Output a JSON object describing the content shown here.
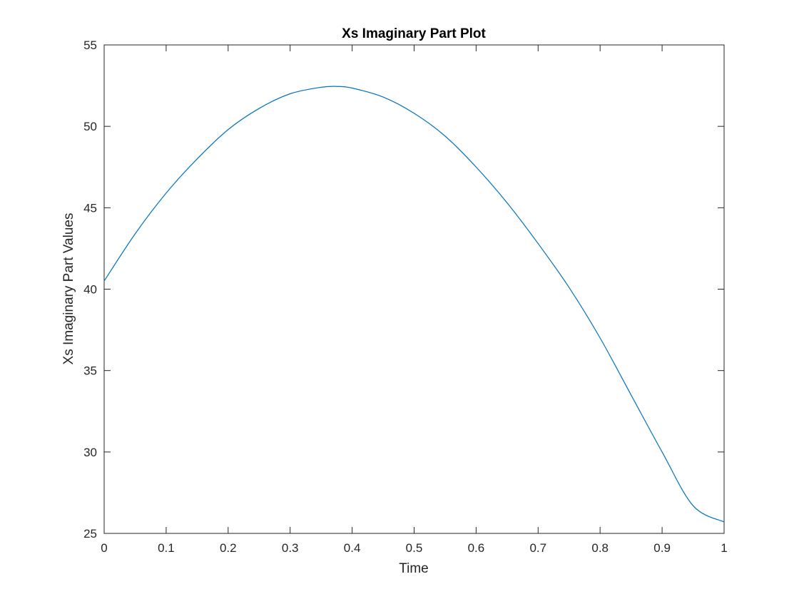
{
  "chart_data": {
    "type": "line",
    "title": "Xs Imaginary Part Plot",
    "xlabel": "Time",
    "ylabel": "Xs Imaginary Part Values",
    "xlim": [
      0,
      1
    ],
    "ylim": [
      25,
      55
    ],
    "xticks": [
      "0",
      "0.1",
      "0.2",
      "0.3",
      "0.4",
      "0.5",
      "0.6",
      "0.7",
      "0.8",
      "0.9",
      "1"
    ],
    "yticks": [
      "25",
      "30",
      "35",
      "40",
      "45",
      "50",
      "55"
    ],
    "grid": false,
    "line_color": "#0072BD",
    "series": [
      {
        "x": [
          0,
          0.05,
          0.1,
          0.15,
          0.2,
          0.25,
          0.3,
          0.35,
          0.375,
          0.4,
          0.45,
          0.5,
          0.55,
          0.6,
          0.65,
          0.7,
          0.75,
          0.8,
          0.85,
          0.9,
          0.95,
          1.0
        ],
        "values": [
          40.5,
          43.4,
          45.9,
          48.0,
          49.8,
          51.1,
          52.0,
          52.4,
          52.45,
          52.35,
          51.8,
          50.8,
          49.4,
          47.5,
          45.3,
          42.8,
          40.1,
          37.0,
          33.5,
          30.0,
          26.7,
          25.7
        ]
      }
    ]
  }
}
